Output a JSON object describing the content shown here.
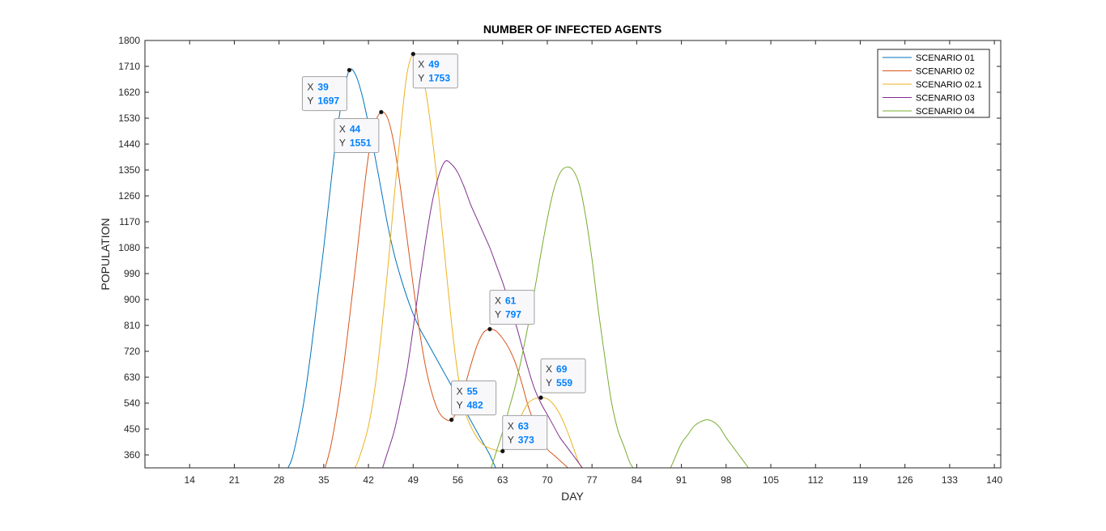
{
  "chart_data": {
    "type": "line",
    "title": "NUMBER OF INFECTED AGENTS",
    "xlabel": "DAY",
    "ylabel": "POPULATION",
    "xlim": [
      7,
      141
    ],
    "ylim": [
      315,
      1800
    ],
    "xticks": [
      14,
      21,
      28,
      35,
      42,
      49,
      56,
      63,
      70,
      77,
      84,
      91,
      98,
      105,
      112,
      119,
      126,
      133,
      140
    ],
    "yticks": [
      360,
      450,
      540,
      630,
      720,
      810,
      900,
      990,
      1080,
      1170,
      1260,
      1350,
      1440,
      1530,
      1620,
      1710,
      1800
    ],
    "grid": false,
    "legend_location": "top-right",
    "series": [
      {
        "name": "SCENARIO 01",
        "color": "#0072bd",
        "points": [
          [
            29,
            300
          ],
          [
            30,
            345
          ],
          [
            31,
            440
          ],
          [
            32,
            560
          ],
          [
            33,
            720
          ],
          [
            34,
            900
          ],
          [
            35,
            1080
          ],
          [
            36,
            1280
          ],
          [
            37,
            1470
          ],
          [
            38,
            1610
          ],
          [
            39,
            1697
          ],
          [
            40,
            1680
          ],
          [
            41,
            1610
          ],
          [
            42,
            1510
          ],
          [
            43,
            1400
          ],
          [
            44,
            1280
          ],
          [
            45,
            1160
          ],
          [
            46,
            1060
          ],
          [
            47,
            980
          ],
          [
            48,
            910
          ],
          [
            49,
            850
          ],
          [
            50,
            800
          ],
          [
            51,
            760
          ],
          [
            52,
            720
          ],
          [
            53,
            680
          ],
          [
            54,
            640
          ],
          [
            55,
            600
          ],
          [
            56,
            560
          ],
          [
            57,
            520
          ],
          [
            58,
            480
          ],
          [
            59,
            440
          ],
          [
            60,
            400
          ],
          [
            61,
            360
          ],
          [
            62,
            310
          ]
        ]
      },
      {
        "name": "SCENARIO 02",
        "color": "#d95319",
        "points": [
          [
            35,
            300
          ],
          [
            36,
            380
          ],
          [
            37,
            500
          ],
          [
            38,
            650
          ],
          [
            39,
            830
          ],
          [
            40,
            1020
          ],
          [
            41,
            1220
          ],
          [
            42,
            1400
          ],
          [
            43,
            1510
          ],
          [
            44,
            1551
          ],
          [
            45,
            1530
          ],
          [
            46,
            1440
          ],
          [
            47,
            1290
          ],
          [
            48,
            1120
          ],
          [
            49,
            950
          ],
          [
            50,
            790
          ],
          [
            51,
            660
          ],
          [
            52,
            570
          ],
          [
            53,
            510
          ],
          [
            54,
            485
          ],
          [
            55,
            482
          ],
          [
            56,
            520
          ],
          [
            57,
            590
          ],
          [
            58,
            670
          ],
          [
            59,
            740
          ],
          [
            60,
            785
          ],
          [
            61,
            797
          ],
          [
            62,
            790
          ],
          [
            63,
            765
          ],
          [
            64,
            730
          ],
          [
            65,
            680
          ],
          [
            66,
            610
          ],
          [
            67,
            530
          ],
          [
            68,
            470
          ],
          [
            69,
            420
          ],
          [
            70,
            380
          ],
          [
            71,
            360
          ],
          [
            72,
            340
          ],
          [
            73,
            320
          ],
          [
            74,
            300
          ]
        ]
      },
      {
        "name": "SCENARIO 02.1",
        "color": "#edb120",
        "points": [
          [
            39,
            300
          ],
          [
            40,
            320
          ],
          [
            41,
            380
          ],
          [
            42,
            460
          ],
          [
            43,
            590
          ],
          [
            44,
            780
          ],
          [
            45,
            1000
          ],
          [
            46,
            1250
          ],
          [
            47,
            1480
          ],
          [
            48,
            1680
          ],
          [
            49,
            1753
          ],
          [
            50,
            1720
          ],
          [
            51,
            1620
          ],
          [
            52,
            1460
          ],
          [
            53,
            1260
          ],
          [
            54,
            1040
          ],
          [
            55,
            820
          ],
          [
            56,
            640
          ],
          [
            57,
            520
          ],
          [
            58,
            460
          ],
          [
            59,
            420
          ],
          [
            60,
            395
          ],
          [
            61,
            383
          ],
          [
            62,
            376
          ],
          [
            63,
            373
          ],
          [
            64,
            400
          ],
          [
            65,
            450
          ],
          [
            66,
            500
          ],
          [
            67,
            540
          ],
          [
            68,
            555
          ],
          [
            69,
            559
          ],
          [
            70,
            555
          ],
          [
            71,
            535
          ],
          [
            72,
            500
          ],
          [
            73,
            450
          ],
          [
            74,
            390
          ],
          [
            75,
            330
          ],
          [
            76,
            300
          ]
        ]
      },
      {
        "name": "SCENARIO 03",
        "color": "#7e2f8e",
        "points": [
          [
            44,
            300
          ],
          [
            45,
            370
          ],
          [
            46,
            440
          ],
          [
            47,
            540
          ],
          [
            48,
            650
          ],
          [
            49,
            800
          ],
          [
            50,
            960
          ],
          [
            51,
            1110
          ],
          [
            52,
            1240
          ],
          [
            53,
            1330
          ],
          [
            54,
            1380
          ],
          [
            55,
            1370
          ],
          [
            56,
            1340
          ],
          [
            57,
            1290
          ],
          [
            58,
            1230
          ],
          [
            59,
            1180
          ],
          [
            60,
            1130
          ],
          [
            61,
            1080
          ],
          [
            62,
            1020
          ],
          [
            63,
            960
          ],
          [
            64,
            890
          ],
          [
            65,
            820
          ],
          [
            66,
            740
          ],
          [
            67,
            660
          ],
          [
            68,
            590
          ],
          [
            69,
            540
          ],
          [
            70,
            500
          ],
          [
            71,
            460
          ],
          [
            72,
            420
          ],
          [
            73,
            390
          ],
          [
            74,
            360
          ],
          [
            75,
            330
          ],
          [
            76,
            300
          ]
        ]
      },
      {
        "name": "SCENARIO 04",
        "color": "#77ac30",
        "points": [
          [
            61,
            300
          ],
          [
            62,
            370
          ],
          [
            63,
            440
          ],
          [
            64,
            520
          ],
          [
            65,
            600
          ],
          [
            66,
            700
          ],
          [
            67,
            810
          ],
          [
            68,
            930
          ],
          [
            69,
            1060
          ],
          [
            70,
            1180
          ],
          [
            71,
            1280
          ],
          [
            72,
            1340
          ],
          [
            73,
            1360
          ],
          [
            74,
            1350
          ],
          [
            75,
            1300
          ],
          [
            76,
            1190
          ],
          [
            77,
            1040
          ],
          [
            78,
            860
          ],
          [
            79,
            700
          ],
          [
            80,
            550
          ],
          [
            81,
            450
          ],
          [
            82,
            390
          ],
          [
            83,
            330
          ],
          [
            84,
            300
          ],
          [
            89,
            300
          ],
          [
            90,
            350
          ],
          [
            91,
            400
          ],
          [
            92,
            430
          ],
          [
            93,
            460
          ],
          [
            94,
            475
          ],
          [
            95,
            482
          ],
          [
            96,
            475
          ],
          [
            97,
            455
          ],
          [
            98,
            420
          ],
          [
            99,
            390
          ],
          [
            100,
            360
          ],
          [
            101,
            330
          ],
          [
            102,
            300
          ]
        ]
      }
    ],
    "datatips": [
      {
        "x": 39,
        "y": 1697,
        "x_label": "X",
        "y_label": "Y",
        "x_value": "39",
        "y_value": "1697"
      },
      {
        "x": 44,
        "y": 1551,
        "x_label": "X",
        "y_label": "Y",
        "x_value": "44",
        "y_value": "1551"
      },
      {
        "x": 49,
        "y": 1753,
        "x_label": "X",
        "y_label": "Y",
        "x_value": "49",
        "y_value": "1753"
      },
      {
        "x": 61,
        "y": 797,
        "x_label": "X",
        "y_label": "Y",
        "x_value": "61",
        "y_value": "797"
      },
      {
        "x": 55,
        "y": 482,
        "x_label": "X",
        "y_label": "Y",
        "x_value": "55",
        "y_value": "482"
      },
      {
        "x": 63,
        "y": 373,
        "x_label": "X",
        "y_label": "Y",
        "x_value": "63",
        "y_value": "373"
      },
      {
        "x": 69,
        "y": 559,
        "x_label": "X",
        "y_label": "Y",
        "x_value": "69",
        "y_value": "559"
      }
    ]
  }
}
